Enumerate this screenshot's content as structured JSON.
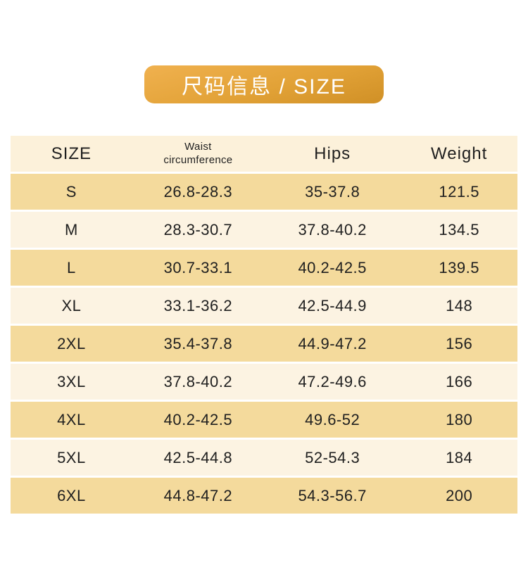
{
  "badge": {
    "label": "尺码信息 / SIZE"
  },
  "colors": {
    "badge_gold_top": "#f0b14f",
    "badge_gold_bottom": "#d09026",
    "row_tan": "#f4da9c",
    "row_cream": "#fcf3e2",
    "header_bg": "#fcf1da",
    "text": "#1f1f1f",
    "badge_text": "#ffffff"
  },
  "table": {
    "headers": {
      "size": "SIZE",
      "waist": "Waist\ncircumference",
      "hips": "Hips",
      "weight": "Weight"
    },
    "rows": [
      {
        "size": "S",
        "waist": "26.8-28.3",
        "hips": "35-37.8",
        "weight": "121.5"
      },
      {
        "size": "M",
        "waist": "28.3-30.7",
        "hips": "37.8-40.2",
        "weight": "134.5"
      },
      {
        "size": "L",
        "waist": "30.7-33.1",
        "hips": "40.2-42.5",
        "weight": "139.5"
      },
      {
        "size": "XL",
        "waist": "33.1-36.2",
        "hips": "42.5-44.9",
        "weight": "148"
      },
      {
        "size": "2XL",
        "waist": "35.4-37.8",
        "hips": "44.9-47.2",
        "weight": "156"
      },
      {
        "size": "3XL",
        "waist": "37.8-40.2",
        "hips": "47.2-49.6",
        "weight": "166"
      },
      {
        "size": "4XL",
        "waist": "40.2-42.5",
        "hips": "49.6-52",
        "weight": "180"
      },
      {
        "size": "5XL",
        "waist": "42.5-44.8",
        "hips": "52-54.3",
        "weight": "184"
      },
      {
        "size": "6XL",
        "waist": "44.8-47.2",
        "hips": "54.3-56.7",
        "weight": "200"
      }
    ]
  },
  "chart_data": {
    "type": "table",
    "title": "尺码信息 / SIZE",
    "columns": [
      "SIZE",
      "Waist circumference",
      "Hips",
      "Weight"
    ],
    "rows": [
      [
        "S",
        "26.8-28.3",
        "35-37.8",
        "121.5"
      ],
      [
        "M",
        "28.3-30.7",
        "37.8-40.2",
        "134.5"
      ],
      [
        "L",
        "30.7-33.1",
        "40.2-42.5",
        "139.5"
      ],
      [
        "XL",
        "33.1-36.2",
        "42.5-44.9",
        "148"
      ],
      [
        "2XL",
        "35.4-37.8",
        "44.9-47.2",
        "156"
      ],
      [
        "3XL",
        "37.8-40.2",
        "47.2-49.6",
        "166"
      ],
      [
        "4XL",
        "40.2-42.5",
        "49.6-52",
        "180"
      ],
      [
        "5XL",
        "42.5-44.8",
        "52-54.3",
        "184"
      ],
      [
        "6XL",
        "44.8-47.2",
        "54.3-56.7",
        "200"
      ]
    ],
    "layout_hints": {
      "striped": true,
      "stripe_colors": [
        "#f4da9c",
        "#fcf3e2"
      ],
      "grid": false
    }
  }
}
